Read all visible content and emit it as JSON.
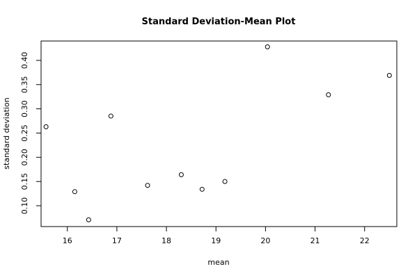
{
  "chart_data": {
    "type": "scatter",
    "title": "Standard Deviation-Mean Plot",
    "xlabel": "mean",
    "ylabel": "standard deviation",
    "xlim": [
      15.47,
      22.65
    ],
    "ylim": [
      0.057,
      0.44
    ],
    "xticks": [
      16,
      17,
      18,
      19,
      20,
      21,
      22
    ],
    "xtick_labels": [
      "16",
      "17",
      "18",
      "19",
      "20",
      "21",
      "22"
    ],
    "yticks": [
      0.1,
      0.15,
      0.2,
      0.25,
      0.3,
      0.35,
      0.4
    ],
    "ytick_labels": [
      "0.10",
      "0.15",
      "0.20",
      "0.25",
      "0.30",
      "0.35",
      "0.40"
    ],
    "grid": false,
    "marker": "open-circle",
    "points": [
      {
        "x": 15.57,
        "y": 0.263
      },
      {
        "x": 16.15,
        "y": 0.129
      },
      {
        "x": 16.43,
        "y": 0.071
      },
      {
        "x": 16.88,
        "y": 0.285
      },
      {
        "x": 17.62,
        "y": 0.142
      },
      {
        "x": 18.3,
        "y": 0.164
      },
      {
        "x": 18.72,
        "y": 0.134
      },
      {
        "x": 19.18,
        "y": 0.15
      },
      {
        "x": 20.04,
        "y": 0.428
      },
      {
        "x": 21.27,
        "y": 0.329
      },
      {
        "x": 22.5,
        "y": 0.369
      }
    ]
  }
}
